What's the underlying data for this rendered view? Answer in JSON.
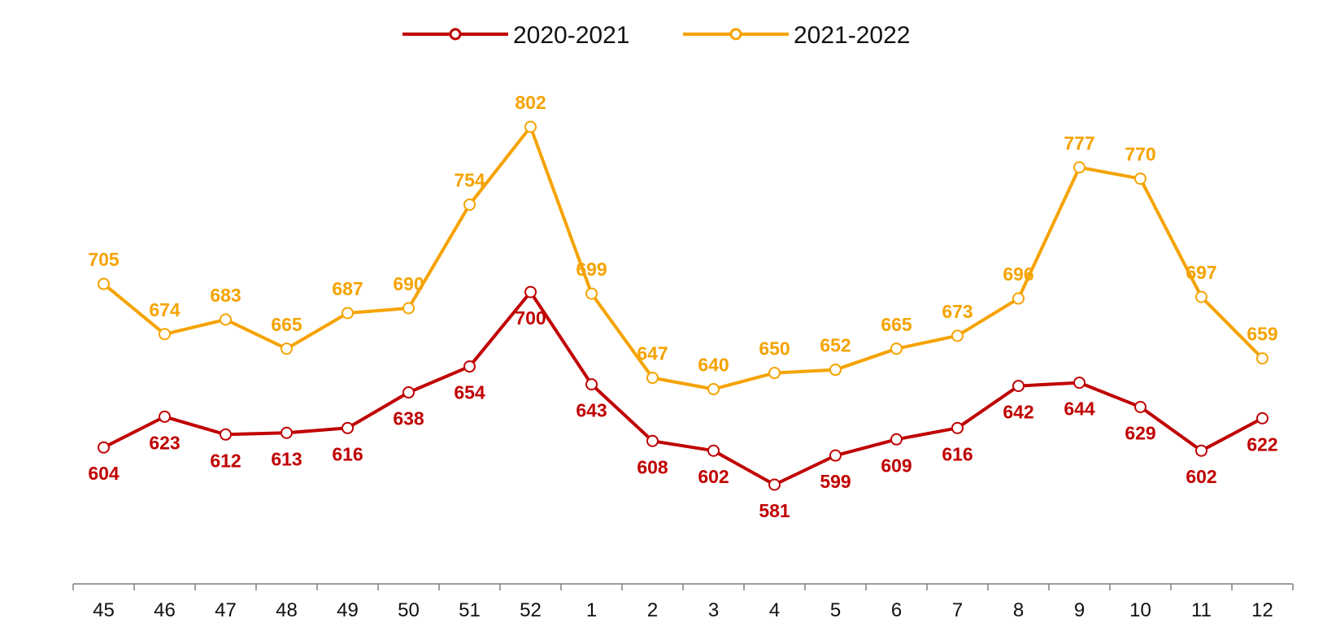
{
  "chart_data": {
    "type": "line",
    "categories": [
      "45",
      "46",
      "47",
      "48",
      "49",
      "50",
      "51",
      "52",
      "1",
      "2",
      "3",
      "4",
      "5",
      "6",
      "7",
      "8",
      "9",
      "10",
      "11",
      "12"
    ],
    "series": [
      {
        "name": "2020-2021",
        "color": "#C00000",
        "values": [
          604,
          623,
          612,
          613,
          616,
          638,
          654,
          700,
          643,
          608,
          602,
          581,
          599,
          609,
          616,
          642,
          644,
          629,
          602,
          622
        ]
      },
      {
        "name": "2021-2022",
        "color": "#F5A300",
        "values": [
          705,
          674,
          683,
          665,
          687,
          690,
          754,
          802,
          699,
          647,
          640,
          650,
          652,
          665,
          673,
          696,
          777,
          770,
          697,
          659
        ]
      }
    ],
    "legend_position": "top-center",
    "grid": false,
    "y_axis_visible": false,
    "data_labels": true
  }
}
